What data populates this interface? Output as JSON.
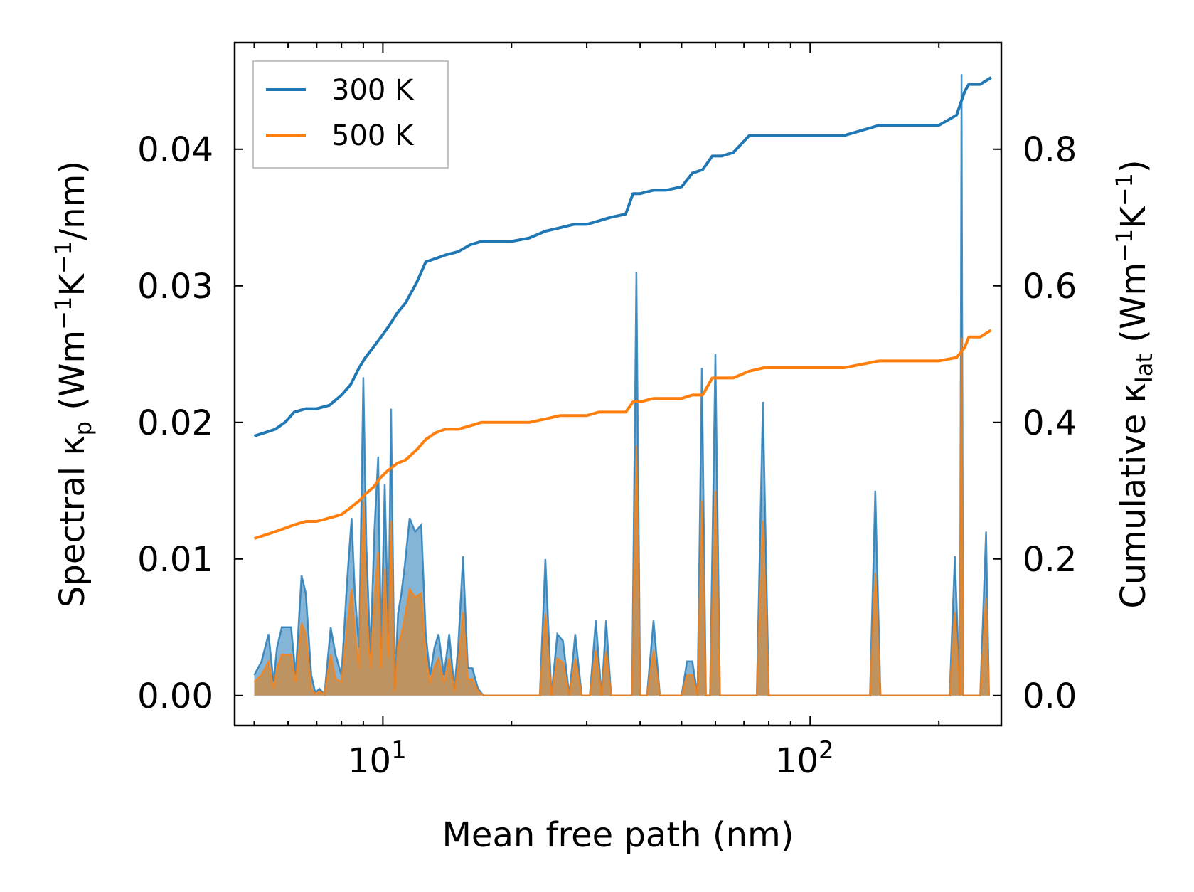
{
  "chart_data": {
    "type": "line",
    "xscale": "log",
    "xlim": [
      4.5,
      280
    ],
    "xlabel": "Mean free path (nm)",
    "xticks": [
      {
        "mantissa": "10",
        "exp": "1",
        "value": 10
      },
      {
        "mantissa": "10",
        "exp": "2",
        "value": 100
      }
    ],
    "left_axis": {
      "label": {
        "prefix": "Spectral κ",
        "sub": "p",
        "units": " (Wm",
        "exp1": "−1",
        "mid": "K",
        "exp2": "−1",
        "tail": "/nm)"
      },
      "ylim": [
        -0.0022,
        0.0478
      ],
      "ticks": [
        0.0,
        0.01,
        0.02,
        0.03,
        0.04
      ],
      "tick_labels": [
        "0.00",
        "0.01",
        "0.02",
        "0.03",
        "0.04"
      ]
    },
    "right_axis": {
      "label": {
        "prefix": "Cumulative κ",
        "sub": "lat",
        "units": " (Wm",
        "exp1": "−1",
        "mid": "K",
        "exp2": "−1",
        "tail": ")"
      },
      "ylim": [
        -0.044,
        0.956
      ],
      "ticks": [
        0.0,
        0.2,
        0.4,
        0.6,
        0.8
      ],
      "tick_labels": [
        "0.0",
        "0.2",
        "0.4",
        "0.6",
        "0.8"
      ]
    },
    "legend": {
      "position": "top-left",
      "entries": [
        "300 K",
        "500 K"
      ]
    },
    "colors": {
      "300K": "#1f77b4",
      "500K": "#ff7f0e",
      "fill300": "#1f77b4",
      "fill500": "#d08a3a"
    },
    "series": [
      {
        "name": "300 K",
        "axis": "right",
        "x": [
          5.0,
          5.3,
          5.6,
          5.9,
          6.2,
          6.6,
          7.0,
          7.5,
          8.0,
          8.4,
          8.8,
          9.1,
          9.5,
          9.9,
          10.3,
          10.8,
          11.3,
          12.0,
          12.6,
          13.3,
          14.0,
          15.0,
          16.0,
          17.0,
          18.5,
          20.0,
          22.0,
          24.0,
          26.0,
          28.0,
          30.0,
          32.0,
          34.0,
          37.0,
          38.5,
          40.0,
          43.0,
          46.0,
          50.0,
          53.0,
          56.0,
          59.0,
          62.0,
          66.0,
          72.0,
          78.0,
          85.0,
          100.0,
          120.0,
          145.0,
          170.0,
          200.0,
          220.0,
          230.0,
          235.0,
          250.0,
          265.0
        ],
        "values": [
          0.38,
          0.385,
          0.39,
          0.4,
          0.415,
          0.42,
          0.42,
          0.425,
          0.44,
          0.455,
          0.48,
          0.495,
          0.51,
          0.525,
          0.54,
          0.56,
          0.575,
          0.605,
          0.635,
          0.64,
          0.645,
          0.65,
          0.66,
          0.665,
          0.665,
          0.665,
          0.67,
          0.68,
          0.685,
          0.69,
          0.69,
          0.695,
          0.7,
          0.705,
          0.735,
          0.735,
          0.74,
          0.74,
          0.745,
          0.765,
          0.77,
          0.79,
          0.79,
          0.795,
          0.82,
          0.82,
          0.82,
          0.82,
          0.82,
          0.835,
          0.835,
          0.835,
          0.85,
          0.885,
          0.895,
          0.895,
          0.905
        ]
      },
      {
        "name": "500 K",
        "axis": "right",
        "x": [
          5.0,
          5.3,
          5.6,
          5.9,
          6.2,
          6.6,
          7.0,
          7.5,
          8.0,
          8.4,
          8.8,
          9.1,
          9.5,
          9.9,
          10.3,
          10.8,
          11.3,
          12.0,
          12.6,
          13.3,
          14.0,
          15.0,
          16.0,
          17.0,
          18.5,
          20.0,
          22.0,
          24.0,
          26.0,
          28.0,
          30.0,
          32.0,
          34.0,
          37.0,
          38.5,
          40.0,
          43.0,
          46.0,
          50.0,
          53.0,
          56.0,
          59.0,
          62.0,
          66.0,
          72.0,
          78.0,
          85.0,
          100.0,
          120.0,
          145.0,
          170.0,
          200.0,
          220.0,
          230.0,
          235.0,
          250.0,
          265.0
        ],
        "values": [
          0.23,
          0.235,
          0.24,
          0.245,
          0.25,
          0.255,
          0.255,
          0.26,
          0.265,
          0.275,
          0.285,
          0.295,
          0.305,
          0.32,
          0.33,
          0.34,
          0.345,
          0.36,
          0.375,
          0.385,
          0.39,
          0.39,
          0.395,
          0.4,
          0.4,
          0.4,
          0.4,
          0.405,
          0.41,
          0.41,
          0.41,
          0.415,
          0.415,
          0.415,
          0.43,
          0.43,
          0.435,
          0.435,
          0.435,
          0.44,
          0.44,
          0.465,
          0.465,
          0.465,
          0.475,
          0.48,
          0.48,
          0.48,
          0.48,
          0.49,
          0.49,
          0.49,
          0.495,
          0.51,
          0.525,
          0.525,
          0.535
        ]
      },
      {
        "name": "Spectral 300 K",
        "axis": "left",
        "x": [
          5.0,
          5.2,
          5.4,
          5.55,
          5.65,
          5.8,
          5.95,
          6.1,
          6.25,
          6.45,
          6.6,
          6.8,
          6.95,
          7.1,
          7.3,
          7.55,
          7.75,
          8.0,
          8.25,
          8.45,
          8.6,
          8.8,
          9.0,
          9.15,
          9.35,
          9.55,
          9.75,
          9.9,
          10.1,
          10.3,
          10.45,
          10.65,
          10.85,
          11.05,
          11.25,
          11.55,
          11.9,
          12.3,
          12.6,
          12.9,
          13.2,
          13.5,
          13.9,
          14.3,
          14.7,
          15.0,
          15.4,
          15.8,
          16.2,
          16.7,
          17.2,
          17.7,
          18.3,
          19.5,
          21.0,
          22.5,
          23.3,
          24.0,
          24.8,
          25.6,
          26.4,
          27.3,
          28.2,
          29.2,
          30.5,
          31.5,
          32.5,
          33.3,
          34.2,
          35.5,
          37.0,
          38.3,
          39.2,
          40.0,
          41.5,
          43.0,
          44.5,
          46.0,
          48.0,
          50.0,
          51.5,
          53.0,
          54.5,
          55.8,
          57.0,
          58.3,
          60.0,
          61.5,
          63.0,
          65.0,
          67.0,
          70.0,
          72.5,
          75.0,
          77.5,
          80.0,
          83.0,
          87.0,
          100.0,
          120.0,
          138.0,
          142.0,
          146.0,
          150.0,
          170.0,
          195.0,
          212.0,
          218.0,
          224.0,
          226.0,
          228.0,
          232.0,
          240.0,
          250.0,
          258.0,
          262.0
        ],
        "values": [
          0.0015,
          0.0025,
          0.0045,
          0.001,
          0.0035,
          0.005,
          0.005,
          0.005,
          0.0015,
          0.0088,
          0.0075,
          0.0015,
          0.0002,
          0.0005,
          0.0001,
          0.005,
          0.003,
          0.0015,
          0.0085,
          0.013,
          0.0075,
          0.0035,
          0.0233,
          0.011,
          0.003,
          0.012,
          0.0175,
          0.0035,
          0.0155,
          0.0045,
          0.021,
          0.0005,
          0.006,
          0.0075,
          0.0095,
          0.013,
          0.012,
          0.0125,
          0.0045,
          0.0015,
          0.0035,
          0.0045,
          0.0015,
          0.0045,
          0.0005,
          0.0035,
          0.0102,
          0.002,
          0.002,
          0.0005,
          0.0,
          0.0,
          0.0,
          0.0,
          0.0,
          0.0,
          0.0,
          0.01,
          0.0,
          0.0045,
          0.004,
          0.0,
          0.0045,
          0.0,
          0.0,
          0.0055,
          0.0,
          0.0055,
          0.0,
          0.0,
          0.0,
          0.0,
          0.031,
          0.0,
          0.0,
          0.0055,
          0.0,
          0.0,
          0.0,
          0.0,
          0.0025,
          0.0025,
          0.0,
          0.024,
          0.0,
          0.0,
          0.025,
          0.0,
          0.0,
          0.0,
          0.0,
          0.0,
          0.0,
          0.0,
          0.0215,
          0.0,
          0.0,
          0.0,
          0.0,
          0.0,
          0.0,
          0.015,
          0.0,
          0.0,
          0.0,
          0.0,
          0.0,
          0.0102,
          0.0,
          0.0455,
          0.0,
          0.0,
          0.0,
          0.0,
          0.012,
          0.0
        ]
      },
      {
        "name": "Spectral 500 K",
        "axis": "left",
        "x": [
          5.0,
          5.2,
          5.4,
          5.55,
          5.65,
          5.8,
          5.95,
          6.1,
          6.25,
          6.45,
          6.6,
          6.8,
          6.95,
          7.1,
          7.3,
          7.55,
          7.75,
          8.0,
          8.25,
          8.45,
          8.6,
          8.8,
          9.0,
          9.15,
          9.35,
          9.55,
          9.75,
          9.9,
          10.1,
          10.3,
          10.45,
          10.65,
          10.85,
          11.05,
          11.25,
          11.55,
          11.9,
          12.3,
          12.6,
          12.9,
          13.2,
          13.5,
          13.9,
          14.3,
          14.7,
          15.0,
          15.4,
          15.8,
          16.2,
          16.7,
          17.2,
          17.7,
          18.3,
          19.5,
          21.0,
          22.5,
          23.3,
          24.0,
          24.8,
          25.6,
          26.4,
          27.3,
          28.2,
          29.2,
          30.5,
          31.5,
          32.5,
          33.3,
          34.2,
          35.5,
          37.0,
          38.3,
          39.2,
          40.0,
          41.5,
          43.0,
          44.5,
          46.0,
          48.0,
          50.0,
          51.5,
          53.0,
          54.5,
          55.8,
          57.0,
          58.3,
          60.0,
          61.5,
          63.0,
          65.0,
          67.0,
          70.0,
          72.5,
          75.0,
          77.5,
          80.0,
          83.0,
          87.0,
          100.0,
          120.0,
          138.0,
          142.0,
          146.0,
          150.0,
          170.0,
          195.0,
          212.0,
          218.0,
          224.0,
          226.0,
          228.0,
          232.0,
          240.0,
          250.0,
          258.0,
          262.0
        ],
        "values": [
          0.001,
          0.0015,
          0.0025,
          0.0005,
          0.002,
          0.003,
          0.003,
          0.003,
          0.001,
          0.0053,
          0.0045,
          0.0005,
          0.0001,
          0.0003,
          0.0001,
          0.003,
          0.0012,
          0.001,
          0.005,
          0.0078,
          0.0045,
          0.002,
          0.0142,
          0.0065,
          0.002,
          0.007,
          0.0105,
          0.002,
          0.0093,
          0.0028,
          0.0128,
          0.0003,
          0.0037,
          0.0045,
          0.0057,
          0.0078,
          0.0072,
          0.0075,
          0.0028,
          0.0009,
          0.0021,
          0.0027,
          0.0009,
          0.0027,
          0.0003,
          0.0021,
          0.0061,
          0.0012,
          0.0012,
          0.0003,
          0.0,
          0.0,
          0.0,
          0.0,
          0.0,
          0.0,
          0.0,
          0.006,
          0.0,
          0.0027,
          0.0024,
          0.0,
          0.0027,
          0.0,
          0.0,
          0.0033,
          0.0,
          0.0033,
          0.0,
          0.0,
          0.0,
          0.0,
          0.0183,
          0.0,
          0.0,
          0.0033,
          0.0,
          0.0,
          0.0,
          0.0,
          0.0015,
          0.0015,
          0.0,
          0.0143,
          0.0,
          0.0,
          0.015,
          0.0,
          0.0,
          0.0,
          0.0,
          0.0,
          0.0,
          0.0,
          0.0128,
          0.0,
          0.0,
          0.0,
          0.0,
          0.0,
          0.0,
          0.009,
          0.0,
          0.0,
          0.0,
          0.0,
          0.0,
          0.0061,
          0.0,
          0.0262,
          0.0,
          0.0,
          0.0,
          0.0,
          0.0072,
          0.0
        ]
      }
    ]
  }
}
